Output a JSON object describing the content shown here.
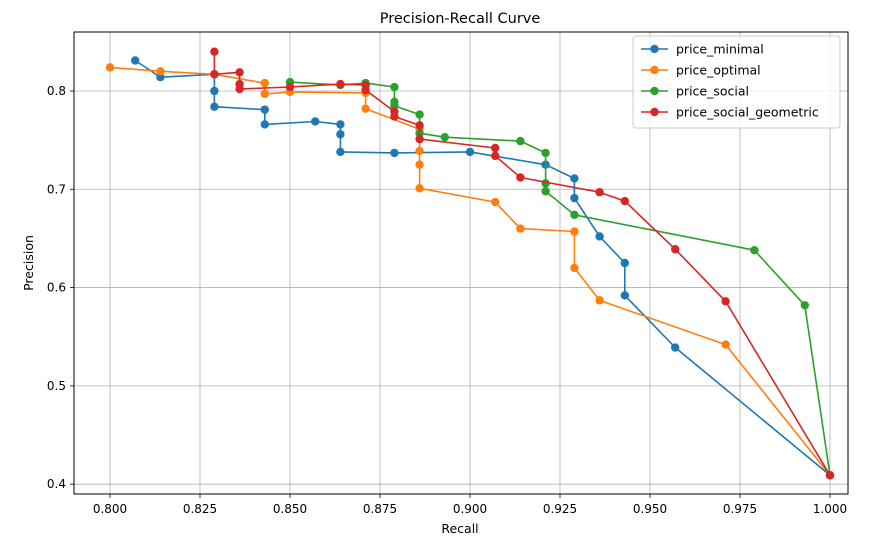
{
  "chart_data": {
    "type": "line",
    "title": "Precision-Recall Curve",
    "xlabel": "Recall",
    "ylabel": "Precision",
    "xlim": [
      0.79,
      1.005
    ],
    "ylim": [
      0.39,
      0.86
    ],
    "xticks": [
      0.8,
      0.825,
      0.85,
      0.875,
      0.9,
      0.925,
      0.95,
      0.975,
      1.0
    ],
    "xtick_labels": [
      "0.800",
      "0.825",
      "0.850",
      "0.875",
      "0.900",
      "0.925",
      "0.950",
      "0.975",
      "1.000"
    ],
    "yticks": [
      0.4,
      0.5,
      0.6,
      0.7,
      0.8
    ],
    "ytick_labels": [
      "0.4",
      "0.5",
      "0.6",
      "0.7",
      "0.8"
    ],
    "grid": true,
    "legend_position": "top-right",
    "series": [
      {
        "name": "price_minimal",
        "color": "#1f77b4",
        "x": [
          0.807,
          0.814,
          0.829,
          0.829,
          0.829,
          0.843,
          0.843,
          0.857,
          0.864,
          0.864,
          0.864,
          0.879,
          0.9,
          0.921,
          0.929,
          0.929,
          0.936,
          0.943,
          0.943,
          0.957,
          1.0
        ],
        "y": [
          0.831,
          0.814,
          0.817,
          0.8,
          0.784,
          0.781,
          0.766,
          0.769,
          0.766,
          0.756,
          0.738,
          0.737,
          0.738,
          0.725,
          0.711,
          0.691,
          0.652,
          0.625,
          0.592,
          0.539,
          0.409
        ]
      },
      {
        "name": "price_optimal",
        "color": "#ff7f0e",
        "x": [
          0.8,
          0.814,
          0.829,
          0.843,
          0.843,
          0.85,
          0.871,
          0.871,
          0.886,
          0.886,
          0.886,
          0.886,
          0.907,
          0.914,
          0.929,
          0.929,
          0.936,
          0.971,
          1.0
        ],
        "y": [
          0.824,
          0.82,
          0.817,
          0.808,
          0.797,
          0.799,
          0.798,
          0.782,
          0.761,
          0.739,
          0.725,
          0.701,
          0.687,
          0.66,
          0.657,
          0.62,
          0.587,
          0.542,
          0.409
        ]
      },
      {
        "name": "price_social",
        "color": "#2ca02c",
        "x": [
          0.85,
          0.864,
          0.871,
          0.879,
          0.879,
          0.879,
          0.886,
          0.886,
          0.893,
          0.914,
          0.921,
          0.921,
          0.921,
          0.929,
          0.979,
          0.993,
          1.0
        ],
        "y": [
          0.809,
          0.806,
          0.808,
          0.804,
          0.789,
          0.785,
          0.776,
          0.757,
          0.753,
          0.749,
          0.737,
          0.706,
          0.698,
          0.674,
          0.638,
          0.582,
          0.409
        ]
      },
      {
        "name": "price_social_geometric",
        "color": "#d62728",
        "x": [
          0.829,
          0.829,
          0.836,
          0.836,
          0.836,
          0.85,
          0.864,
          0.871,
          0.871,
          0.879,
          0.879,
          0.886,
          0.886,
          0.907,
          0.907,
          0.914,
          0.936,
          0.943,
          0.957,
          0.971,
          1.0
        ],
        "y": [
          0.84,
          0.817,
          0.819,
          0.807,
          0.802,
          0.804,
          0.807,
          0.806,
          0.801,
          0.779,
          0.774,
          0.765,
          0.751,
          0.742,
          0.734,
          0.712,
          0.697,
          0.688,
          0.639,
          0.586,
          0.409
        ]
      }
    ]
  }
}
